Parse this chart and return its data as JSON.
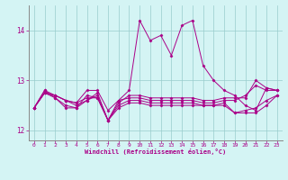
{
  "xlabel": "Windchill (Refroidissement éolien,°C)",
  "bg_color": "#d4f4f4",
  "line_color": "#aa0088",
  "grid_color": "#99cccc",
  "x_values": [
    0,
    1,
    2,
    3,
    4,
    5,
    6,
    7,
    8,
    9,
    10,
    11,
    12,
    13,
    14,
    15,
    16,
    17,
    18,
    19,
    20,
    21,
    22,
    23
  ],
  "series": [
    [
      12.45,
      12.75,
      12.7,
      12.6,
      12.55,
      12.65,
      12.65,
      12.2,
      12.45,
      12.55,
      12.55,
      12.5,
      12.5,
      12.5,
      12.5,
      12.5,
      12.5,
      12.5,
      12.5,
      12.35,
      12.35,
      12.35,
      12.5,
      12.7
    ],
    [
      12.45,
      12.75,
      12.7,
      12.6,
      12.55,
      12.8,
      12.8,
      12.4,
      12.6,
      12.65,
      12.65,
      12.6,
      12.6,
      12.6,
      12.6,
      12.6,
      12.55,
      12.55,
      12.6,
      12.6,
      12.7,
      12.9,
      12.8,
      12.8
    ],
    [
      12.45,
      12.75,
      12.65,
      12.45,
      12.45,
      12.7,
      12.65,
      12.2,
      12.5,
      12.6,
      12.6,
      12.55,
      12.55,
      12.55,
      12.55,
      12.55,
      12.5,
      12.5,
      12.55,
      12.35,
      12.4,
      12.45,
      12.6,
      12.7
    ],
    [
      12.45,
      12.8,
      12.65,
      12.5,
      12.45,
      12.6,
      12.75,
      12.2,
      12.55,
      12.7,
      12.7,
      12.65,
      12.65,
      12.65,
      12.65,
      12.65,
      12.6,
      12.6,
      12.65,
      12.65,
      12.65,
      13.0,
      12.85,
      12.8
    ],
    [
      12.45,
      12.8,
      12.7,
      12.6,
      12.5,
      12.6,
      12.7,
      12.2,
      12.6,
      12.8,
      14.2,
      13.8,
      13.9,
      13.5,
      14.1,
      14.2,
      13.3,
      13.0,
      12.8,
      12.7,
      12.5,
      12.4,
      12.85,
      12.8
    ]
  ],
  "ylim": [
    11.8,
    14.5
  ],
  "yticks": [
    12,
    13,
    14
  ],
  "xticks": [
    0,
    1,
    2,
    3,
    4,
    5,
    6,
    7,
    8,
    9,
    10,
    11,
    12,
    13,
    14,
    15,
    16,
    17,
    18,
    19,
    20,
    21,
    22,
    23
  ]
}
